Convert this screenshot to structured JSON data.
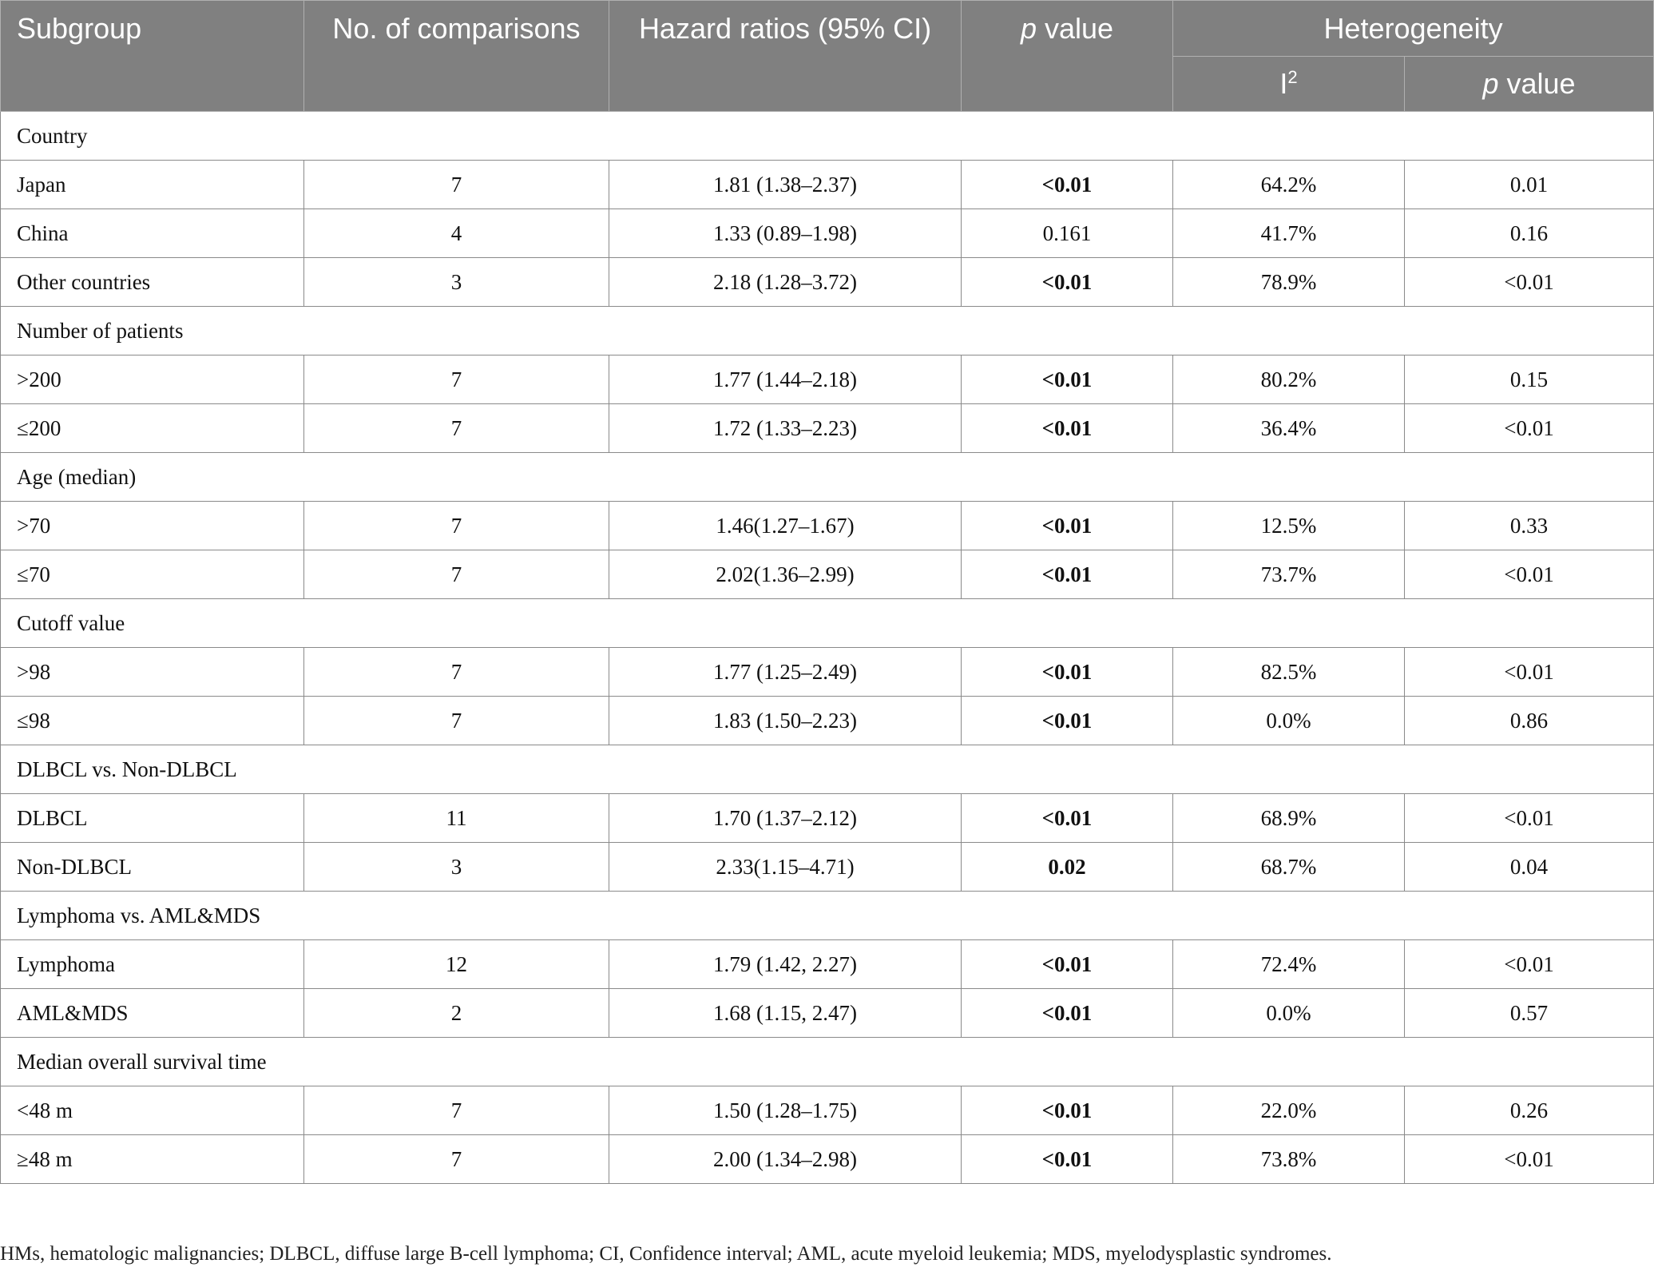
{
  "header": {
    "subgroup": "Subgroup",
    "comparisons": "No. of comparisons",
    "hazard": "Hazard ratios (95% CI)",
    "p_italic": "p",
    "p_rest": " value",
    "heterogeneity": "Heterogeneity",
    "i2_base": "I",
    "i2_sup": "2",
    "het_p_italic": "p",
    "het_p_rest": " value"
  },
  "rows": [
    {
      "type": "group",
      "label": "Country"
    },
    {
      "type": "data",
      "subgroup": "Japan",
      "n": "7",
      "hr": "1.81 (1.38–2.37)",
      "p": "<0.01",
      "p_bold": true,
      "i2": "64.2%",
      "het_p": "0.01"
    },
    {
      "type": "data",
      "subgroup": "China",
      "n": "4",
      "hr": "1.33 (0.89–1.98)",
      "p": "0.161",
      "p_bold": false,
      "i2": "41.7%",
      "het_p": "0.16"
    },
    {
      "type": "data",
      "subgroup": "Other countries",
      "n": "3",
      "hr": "2.18 (1.28–3.72)",
      "p": "<0.01",
      "p_bold": true,
      "i2": "78.9%",
      "het_p": "<0.01"
    },
    {
      "type": "group",
      "label": "Number of patients"
    },
    {
      "type": "data",
      "subgroup": ">200",
      "n": "7",
      "hr": "1.77 (1.44–2.18)",
      "p": "<0.01",
      "p_bold": true,
      "i2": "80.2%",
      "het_p": "0.15"
    },
    {
      "type": "data",
      "subgroup": "≤200",
      "n": "7",
      "hr": "1.72 (1.33–2.23)",
      "p": "<0.01",
      "p_bold": true,
      "i2": "36.4%",
      "het_p": "<0.01"
    },
    {
      "type": "group",
      "label": "Age (median)"
    },
    {
      "type": "data",
      "subgroup": ">70",
      "n": "7",
      "hr": "1.46(1.27–1.67)",
      "p": "<0.01",
      "p_bold": true,
      "i2": "12.5%",
      "het_p": "0.33"
    },
    {
      "type": "data",
      "subgroup": "≤70",
      "n": "7",
      "hr": "2.02(1.36–2.99)",
      "p": "<0.01",
      "p_bold": true,
      "i2": "73.7%",
      "het_p": "<0.01"
    },
    {
      "type": "group",
      "label": "Cutoff value"
    },
    {
      "type": "data",
      "subgroup": ">98",
      "n": "7",
      "hr": "1.77 (1.25–2.49)",
      "p": "<0.01",
      "p_bold": true,
      "i2": "82.5%",
      "het_p": "<0.01"
    },
    {
      "type": "data",
      "subgroup": "≤98",
      "n": "7",
      "hr": "1.83 (1.50–2.23)",
      "p": "<0.01",
      "p_bold": true,
      "i2": "0.0%",
      "het_p": "0.86"
    },
    {
      "type": "group",
      "label": "DLBCL vs. Non-DLBCL"
    },
    {
      "type": "data",
      "subgroup": "DLBCL",
      "n": "11",
      "hr": "1.70 (1.37–2.12)",
      "p": "<0.01",
      "p_bold": true,
      "i2": "68.9%",
      "het_p": "<0.01"
    },
    {
      "type": "data",
      "subgroup": "Non-DLBCL",
      "n": "3",
      "hr": "2.33(1.15–4.71)",
      "p": "0.02",
      "p_bold": true,
      "i2": "68.7%",
      "het_p": "0.04"
    },
    {
      "type": "group",
      "label": "Lymphoma vs. AML&MDS"
    },
    {
      "type": "data",
      "subgroup": "Lymphoma",
      "n": "12",
      "hr": "1.79 (1.42, 2.27)",
      "p": "<0.01",
      "p_bold": true,
      "i2": "72.4%",
      "het_p": "<0.01"
    },
    {
      "type": "data",
      "subgroup": "AML&MDS",
      "n": "2",
      "hr": "1.68 (1.15, 2.47)",
      "p": "<0.01",
      "p_bold": true,
      "i2": "0.0%",
      "het_p": "0.57"
    },
    {
      "type": "group",
      "label": "Median overall survival time"
    },
    {
      "type": "data",
      "subgroup": "<48 m",
      "n": "7",
      "hr": "1.50 (1.28–1.75)",
      "p": "<0.01",
      "p_bold": true,
      "i2": "22.0%",
      "het_p": "0.26"
    },
    {
      "type": "data",
      "subgroup": "≥48 m",
      "n": "7",
      "hr": "2.00 (1.34–2.98)",
      "p": "<0.01",
      "p_bold": true,
      "i2": "73.8%",
      "het_p": "<0.01"
    }
  ],
  "footnote": "HMs, hematologic malignancies; DLBCL, diffuse large B-cell lymphoma; CI, Confidence interval; AML, acute myeloid leukemia; MDS, myelodysplastic syndromes."
}
